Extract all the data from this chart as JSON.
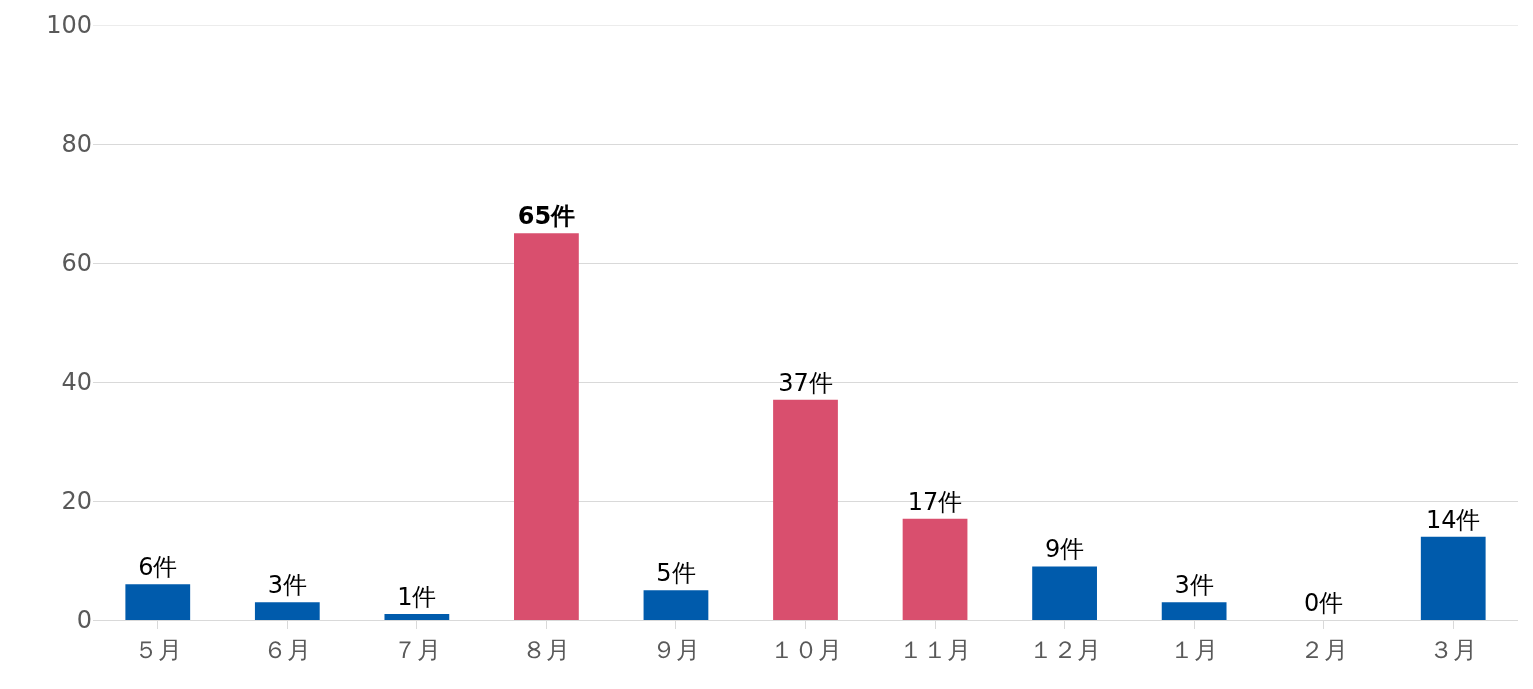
{
  "chart_data": {
    "type": "bar",
    "categories": [
      "５月",
      "６月",
      "７月",
      "８月",
      "９月",
      "１０月",
      "１１月",
      "１２月",
      "１月",
      "２月",
      "３月"
    ],
    "values": [
      6,
      3,
      1,
      65,
      5,
      37,
      17,
      9,
      3,
      0,
      14
    ],
    "colors": [
      "#005bac",
      "#005bac",
      "#005bac",
      "#d94f6e",
      "#005bac",
      "#d94f6e",
      "#d94f6e",
      "#005bac",
      "#005bac",
      "#005bac",
      "#005bac"
    ],
    "value_labels": [
      "6件",
      "3件",
      "1件",
      "65件",
      "5件",
      "37件",
      "17件",
      "9件",
      "3件",
      "0件",
      "14件"
    ],
    "ylim": [
      0,
      100
    ],
    "yticks": [
      0,
      20,
      40,
      60,
      80,
      100
    ],
    "grid": "y"
  }
}
